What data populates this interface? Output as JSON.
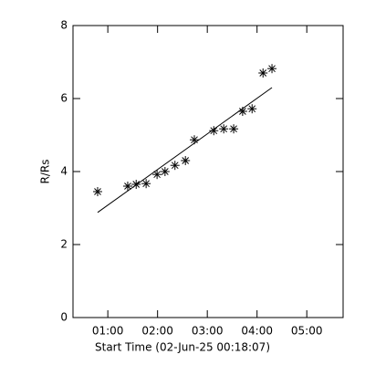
{
  "chart_data": {
    "type": "scatter",
    "xlabel": "Start Time (02-Jun-25 00:18:07)",
    "ylabel": "R/Rs",
    "color": "#000000",
    "x": [
      0.795,
      1.4,
      1.57,
      1.77,
      1.99,
      2.15,
      2.35,
      2.56,
      2.74,
      3.13,
      3.33,
      3.53,
      3.71,
      3.9,
      4.12,
      4.3
    ],
    "values": [
      3.45,
      3.6,
      3.65,
      3.67,
      3.92,
      4.0,
      4.17,
      4.3,
      4.87,
      5.12,
      5.17,
      5.17,
      5.65,
      5.72,
      6.7,
      6.82
    ],
    "fit_x": [
      0.795,
      4.3
    ],
    "fit_values": [
      2.88,
      6.3
    ],
    "xlim": [
      0.3,
      5.73
    ],
    "xticks": [
      {
        "value": 1,
        "label": "01:00"
      },
      {
        "value": 2,
        "label": "02:00"
      },
      {
        "value": 3,
        "label": "03:00"
      },
      {
        "value": 4,
        "label": "04:00"
      },
      {
        "value": 5,
        "label": "05:00"
      }
    ],
    "ylim": [
      0,
      8
    ],
    "yticks": [
      0,
      2,
      4,
      6,
      8
    ]
  }
}
